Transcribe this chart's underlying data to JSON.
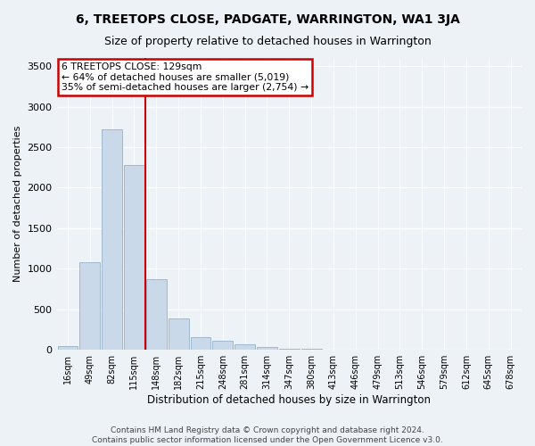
{
  "title": "6, TREETOPS CLOSE, PADGATE, WARRINGTON, WA1 3JA",
  "subtitle": "Size of property relative to detached houses in Warrington",
  "xlabel": "Distribution of detached houses by size in Warrington",
  "ylabel": "Number of detached properties",
  "categories": [
    "16sqm",
    "49sqm",
    "82sqm",
    "115sqm",
    "148sqm",
    "182sqm",
    "215sqm",
    "248sqm",
    "281sqm",
    "314sqm",
    "347sqm",
    "380sqm",
    "413sqm",
    "446sqm",
    "479sqm",
    "513sqm",
    "546sqm",
    "579sqm",
    "612sqm",
    "645sqm",
    "678sqm"
  ],
  "values": [
    50,
    1080,
    2720,
    2280,
    870,
    390,
    160,
    110,
    65,
    30,
    15,
    8,
    5,
    5,
    0,
    0,
    0,
    0,
    0,
    0,
    0
  ],
  "bar_color": "#cad9ea",
  "bar_edge_color": "#a0b8d0",
  "annotation_text_line1": "6 TREETOPS CLOSE: 129sqm",
  "annotation_text_line2": "← 64% of detached houses are smaller (5,019)",
  "annotation_text_line3": "35% of semi-detached houses are larger (2,754) →",
  "annotation_box_color": "#ffffff",
  "annotation_box_edge_color": "#cc0000",
  "annotation_text_color": "#000000",
  "property_line_color": "#cc0000",
  "ylim": [
    0,
    3600
  ],
  "yticks": [
    0,
    500,
    1000,
    1500,
    2000,
    2500,
    3000,
    3500
  ],
  "background_color": "#edf2f7",
  "plot_background_color": "#edf2f7",
  "grid_color": "#ffffff",
  "footer_line1": "Contains HM Land Registry data © Crown copyright and database right 2024.",
  "footer_line2": "Contains public sector information licensed under the Open Government Licence v3.0.",
  "title_fontsize": 10,
  "subtitle_fontsize": 9,
  "xlabel_fontsize": 8.5,
  "ylabel_fontsize": 8
}
